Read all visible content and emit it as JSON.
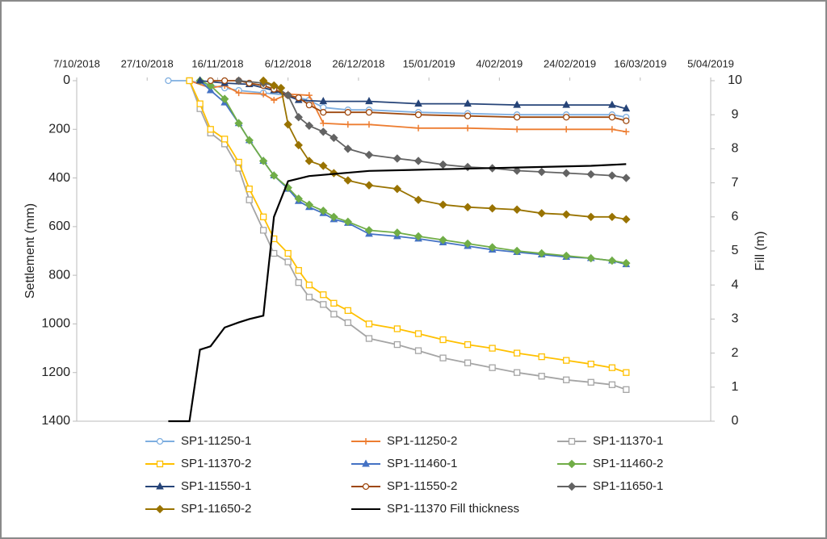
{
  "chart_data": {
    "type": "line",
    "y_label": "Settlement (mm)",
    "y2_label": "Fill  (m)",
    "xlim": [
      "2018-10-07",
      "2019-04-05"
    ],
    "xticks": [
      {
        "value": "2018-10-07",
        "label": "7/10/2018"
      },
      {
        "value": "2018-10-27",
        "label": "27/10/2018"
      },
      {
        "value": "2018-11-16",
        "label": "16/11/2018"
      },
      {
        "value": "2018-12-06",
        "label": "6/12/2018"
      },
      {
        "value": "2018-12-26",
        "label": "26/12/2018"
      },
      {
        "value": "2019-01-15",
        "label": "15/01/2019"
      },
      {
        "value": "2019-02-04",
        "label": "4/02/2019"
      },
      {
        "value": "2019-02-24",
        "label": "24/02/2019"
      },
      {
        "value": "2019-03-16",
        "label": "16/03/2019"
      },
      {
        "value": "2019-04-05",
        "label": "5/04/2019"
      }
    ],
    "ylim": [
      0,
      1400
    ],
    "y_inverted": true,
    "yticks": [
      0,
      200,
      400,
      600,
      800,
      1000,
      1200,
      1400
    ],
    "y2lim": [
      0,
      10
    ],
    "y2ticks": [
      0,
      1,
      2,
      3,
      4,
      5,
      6,
      7,
      8,
      9,
      10
    ],
    "series": [
      {
        "name": "SP1-11250-1",
        "color": "#7eaee0",
        "marker": "circle",
        "x": [
          "2018-11-02",
          "2018-11-08",
          "2018-11-14",
          "2018-11-18",
          "2018-11-22",
          "2018-11-29",
          "2018-12-06",
          "2018-12-12",
          "2018-12-16",
          "2018-12-23",
          "2018-12-29",
          "2019-01-12",
          "2019-01-26",
          "2019-02-09",
          "2019-02-23",
          "2019-03-08",
          "2019-03-12"
        ],
        "values": [
          0,
          0,
          20,
          30,
          40,
          50,
          60,
          80,
          110,
          120,
          120,
          130,
          135,
          140,
          140,
          140,
          150
        ]
      },
      {
        "name": "SP1-11250-2",
        "color": "#ed7d31",
        "marker": "plus",
        "x": [
          "2018-11-08",
          "2018-11-14",
          "2018-11-18",
          "2018-11-22",
          "2018-11-29",
          "2018-12-02",
          "2018-12-06",
          "2018-12-12",
          "2018-12-16",
          "2018-12-23",
          "2018-12-29",
          "2019-01-12",
          "2019-01-26",
          "2019-02-09",
          "2019-02-23",
          "2019-03-08",
          "2019-03-12"
        ],
        "values": [
          0,
          30,
          20,
          50,
          55,
          80,
          55,
          60,
          175,
          180,
          180,
          195,
          195,
          200,
          200,
          200,
          210
        ]
      },
      {
        "name": "SP1-11370-1",
        "color": "#a5a5a5",
        "marker": "square",
        "x": [
          "2018-11-08",
          "2018-11-11",
          "2018-11-14",
          "2018-11-18",
          "2018-11-22",
          "2018-11-25",
          "2018-11-29",
          "2018-12-02",
          "2018-12-06",
          "2018-12-09",
          "2018-12-12",
          "2018-12-16",
          "2018-12-19",
          "2018-12-23",
          "2018-12-29",
          "2019-01-06",
          "2019-01-12",
          "2019-01-19",
          "2019-01-26",
          "2019-02-02",
          "2019-02-09",
          "2019-02-16",
          "2019-02-23",
          "2019-03-02",
          "2019-03-08",
          "2019-03-12"
        ],
        "values": [
          0,
          115,
          215,
          260,
          360,
          490,
          615,
          710,
          745,
          830,
          890,
          920,
          960,
          995,
          1060,
          1085,
          1110,
          1140,
          1160,
          1180,
          1200,
          1215,
          1230,
          1240,
          1250,
          1270
        ]
      },
      {
        "name": "SP1-11370-2",
        "color": "#ffc000",
        "marker": "square",
        "x": [
          "2018-11-08",
          "2018-11-11",
          "2018-11-14",
          "2018-11-18",
          "2018-11-22",
          "2018-11-25",
          "2018-11-29",
          "2018-12-02",
          "2018-12-06",
          "2018-12-09",
          "2018-12-12",
          "2018-12-16",
          "2018-12-19",
          "2018-12-23",
          "2018-12-29",
          "2019-01-06",
          "2019-01-12",
          "2019-01-19",
          "2019-01-26",
          "2019-02-02",
          "2019-02-09",
          "2019-02-16",
          "2019-02-23",
          "2019-03-02",
          "2019-03-08",
          "2019-03-12"
        ],
        "values": [
          0,
          95,
          200,
          240,
          335,
          445,
          560,
          650,
          710,
          780,
          840,
          880,
          915,
          945,
          1000,
          1020,
          1040,
          1065,
          1085,
          1100,
          1120,
          1135,
          1150,
          1165,
          1180,
          1200
        ]
      },
      {
        "name": "SP1-11460-1",
        "color": "#4472c4",
        "marker": "triangle",
        "x": [
          "2018-11-11",
          "2018-11-14",
          "2018-11-18",
          "2018-11-22",
          "2018-11-25",
          "2018-11-29",
          "2018-12-02",
          "2018-12-06",
          "2018-12-09",
          "2018-12-12",
          "2018-12-16",
          "2018-12-19",
          "2018-12-23",
          "2018-12-29",
          "2019-01-06",
          "2019-01-12",
          "2019-01-19",
          "2019-01-26",
          "2019-02-02",
          "2019-02-09",
          "2019-02-16",
          "2019-02-23",
          "2019-03-02",
          "2019-03-08",
          "2019-03-12"
        ],
        "values": [
          0,
          40,
          90,
          175,
          245,
          330,
          390,
          445,
          495,
          520,
          545,
          570,
          585,
          630,
          640,
          650,
          665,
          680,
          695,
          705,
          715,
          725,
          730,
          740,
          755
        ]
      },
      {
        "name": "SP1-11460-2",
        "color": "#70ad47",
        "marker": "diamond",
        "x": [
          "2018-11-11",
          "2018-11-14",
          "2018-11-18",
          "2018-11-22",
          "2018-11-25",
          "2018-11-29",
          "2018-12-02",
          "2018-12-06",
          "2018-12-09",
          "2018-12-12",
          "2018-12-16",
          "2018-12-19",
          "2018-12-23",
          "2018-12-29",
          "2019-01-06",
          "2019-01-12",
          "2019-01-19",
          "2019-01-26",
          "2019-02-02",
          "2019-02-09",
          "2019-02-16",
          "2019-02-23",
          "2019-03-02",
          "2019-03-08",
          "2019-03-12"
        ],
        "values": [
          0,
          20,
          75,
          175,
          245,
          330,
          390,
          440,
          485,
          510,
          535,
          560,
          580,
          615,
          625,
          640,
          655,
          670,
          685,
          700,
          710,
          720,
          730,
          740,
          750
        ]
      },
      {
        "name": "SP1-11550-1",
        "color": "#264478",
        "marker": "triangle",
        "x": [
          "2018-11-11",
          "2018-11-18",
          "2018-11-25",
          "2018-12-02",
          "2018-12-09",
          "2018-12-16",
          "2018-12-29",
          "2019-01-12",
          "2019-01-26",
          "2019-02-09",
          "2019-02-23",
          "2019-03-08",
          "2019-03-12"
        ],
        "values": [
          0,
          10,
          15,
          40,
          80,
          85,
          85,
          95,
          95,
          100,
          100,
          100,
          115
        ]
      },
      {
        "name": "SP1-11550-2",
        "color": "#9e480e",
        "marker": "circle",
        "x": [
          "2018-11-14",
          "2018-11-18",
          "2018-11-22",
          "2018-11-25",
          "2018-11-29",
          "2018-12-02",
          "2018-12-06",
          "2018-12-09",
          "2018-12-12",
          "2018-12-16",
          "2018-12-23",
          "2018-12-29",
          "2019-01-12",
          "2019-01-26",
          "2019-02-09",
          "2019-02-23",
          "2019-03-08",
          "2019-03-12"
        ],
        "values": [
          0,
          0,
          0,
          10,
          20,
          35,
          60,
          70,
          100,
          130,
          130,
          130,
          140,
          145,
          150,
          150,
          150,
          165
        ]
      },
      {
        "name": "SP1-11650-1",
        "color": "#636363",
        "marker": "diamond",
        "x": [
          "2018-11-22",
          "2018-11-29",
          "2018-12-02",
          "2018-12-06",
          "2018-12-09",
          "2018-12-12",
          "2018-12-16",
          "2018-12-19",
          "2018-12-23",
          "2018-12-29",
          "2019-01-06",
          "2019-01-12",
          "2019-01-19",
          "2019-01-26",
          "2019-02-02",
          "2019-02-09",
          "2019-02-16",
          "2019-02-23",
          "2019-03-02",
          "2019-03-08",
          "2019-03-12"
        ],
        "values": [
          0,
          10,
          20,
          60,
          150,
          185,
          210,
          235,
          280,
          305,
          320,
          330,
          345,
          355,
          360,
          370,
          375,
          380,
          385,
          390,
          400
        ]
      },
      {
        "name": "SP1-11650-2",
        "color": "#997300",
        "marker": "diamond",
        "x": [
          "2018-11-29",
          "2018-12-02",
          "2018-12-04",
          "2018-12-06",
          "2018-12-09",
          "2018-12-12",
          "2018-12-16",
          "2018-12-19",
          "2018-12-23",
          "2018-12-29",
          "2019-01-06",
          "2019-01-12",
          "2019-01-19",
          "2019-01-26",
          "2019-02-02",
          "2019-02-09",
          "2019-02-16",
          "2019-02-23",
          "2019-03-02",
          "2019-03-08",
          "2019-03-12"
        ],
        "values": [
          0,
          20,
          30,
          180,
          265,
          330,
          350,
          380,
          410,
          430,
          445,
          490,
          510,
          520,
          525,
          530,
          545,
          550,
          560,
          560,
          570
        ]
      },
      {
        "name": "SP1-11370 Fill thickness",
        "color": "#000000",
        "marker": "none",
        "axis": "y2",
        "x": [
          "2018-11-02",
          "2018-11-08",
          "2018-11-11",
          "2018-11-14",
          "2018-11-18",
          "2018-11-22",
          "2018-11-25",
          "2018-11-29",
          "2018-12-02",
          "2018-12-06",
          "2018-12-12",
          "2018-12-29",
          "2019-01-19",
          "2019-02-09",
          "2019-03-02",
          "2019-03-12"
        ],
        "values": [
          0,
          0,
          2.1,
          2.2,
          2.75,
          2.9,
          3.0,
          3.1,
          6.0,
          7.05,
          7.2,
          7.35,
          7.4,
          7.45,
          7.5,
          7.55
        ]
      }
    ]
  }
}
